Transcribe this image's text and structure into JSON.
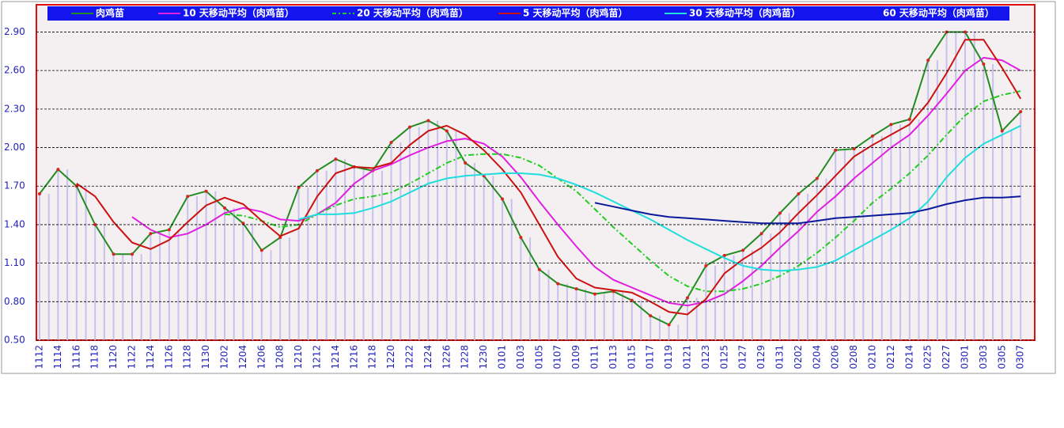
{
  "chart_data": {
    "type": "line",
    "categories": [
      "1112",
      "1114",
      "1116",
      "1118",
      "1120",
      "1122",
      "1124",
      "1126",
      "1128",
      "1130",
      "1202",
      "1204",
      "1206",
      "1208",
      "1210",
      "1212",
      "1214",
      "1216",
      "1218",
      "1220",
      "1222",
      "1224",
      "1226",
      "1228",
      "1230",
      "0101",
      "0103",
      "0105",
      "0107",
      "0109",
      "0111",
      "0113",
      "0115",
      "0117",
      "0119",
      "0121",
      "0123",
      "0125",
      "0127",
      "0129",
      "0131",
      "0202",
      "0204",
      "0206",
      "0208",
      "0210",
      "0212",
      "0214",
      "0225",
      "0227",
      "0301",
      "0303",
      "0305",
      "0307"
    ],
    "ylim": [
      0.5,
      3.1
    ],
    "yticks": [
      {
        "value": 0.5,
        "label": "0.50"
      },
      {
        "value": 0.8,
        "label": "0.80"
      },
      {
        "value": 1.1,
        "label": "1.10"
      },
      {
        "value": 1.4,
        "label": "1.40"
      },
      {
        "value": 1.7,
        "label": "1.70"
      },
      {
        "value": 2.0,
        "label": "2.00"
      },
      {
        "value": 2.3,
        "label": "2.30"
      },
      {
        "value": 2.6,
        "label": "2.60"
      },
      {
        "value": 2.9,
        "label": "2.90"
      }
    ],
    "grid": true,
    "series": [
      {
        "name": "肉鸡苗",
        "color": "#228b22",
        "marker": true,
        "bars": true,
        "values": [
          1.64,
          1.83,
          1.7,
          1.4,
          1.17,
          1.17,
          1.33,
          1.36,
          1.62,
          1.66,
          1.53,
          1.41,
          1.2,
          1.3,
          1.69,
          1.82,
          1.91,
          1.85,
          1.82,
          2.04,
          2.16,
          2.21,
          2.13,
          1.88,
          1.78,
          1.6,
          1.3,
          1.05,
          0.94,
          0.9,
          0.86,
          0.88,
          0.81,
          0.69,
          0.62,
          0.83,
          1.08,
          1.16,
          1.2,
          1.33,
          1.49,
          1.64,
          1.76,
          1.98,
          1.99,
          2.09,
          2.18,
          2.22,
          2.68,
          2.9,
          2.9,
          2.65,
          2.13,
          2.28
        ]
      },
      {
        "name": "10 天移动平均（肉鸡苗）",
        "color": "#e020e0",
        "values": [
          null,
          null,
          null,
          null,
          null,
          1.46,
          1.36,
          1.3,
          1.33,
          1.4,
          1.49,
          1.53,
          1.5,
          1.44,
          1.43,
          1.48,
          1.57,
          1.72,
          1.82,
          1.87,
          1.94,
          2.0,
          2.05,
          2.07,
          2.03,
          1.93,
          1.77,
          1.58,
          1.4,
          1.23,
          1.07,
          0.97,
          0.91,
          0.85,
          0.79,
          0.77,
          0.8,
          0.86,
          0.96,
          1.08,
          1.22,
          1.35,
          1.5,
          1.62,
          1.76,
          1.88,
          2.0,
          2.1,
          2.25,
          2.42,
          2.6,
          2.7,
          2.68,
          2.6
        ]
      },
      {
        "name": "20 天移动平均（肉鸡苗）",
        "color": "#22cc22",
        "dash": true,
        "values": [
          null,
          null,
          null,
          null,
          null,
          null,
          null,
          null,
          null,
          null,
          1.48,
          1.47,
          1.43,
          1.38,
          1.4,
          1.48,
          1.55,
          1.6,
          1.62,
          1.65,
          1.72,
          1.8,
          1.88,
          1.94,
          1.95,
          1.95,
          1.92,
          1.86,
          1.76,
          1.66,
          1.52,
          1.38,
          1.25,
          1.12,
          1.0,
          0.92,
          0.88,
          0.88,
          0.9,
          0.94,
          1.0,
          1.08,
          1.18,
          1.3,
          1.43,
          1.57,
          1.68,
          1.8,
          1.94,
          2.1,
          2.25,
          2.36,
          2.41,
          2.44
        ]
      },
      {
        "name": "5 天移动平均（肉鸡苗）",
        "color": "#cc1111",
        "values": [
          null,
          null,
          1.72,
          1.62,
          1.42,
          1.26,
          1.21,
          1.28,
          1.42,
          1.55,
          1.61,
          1.56,
          1.43,
          1.31,
          1.37,
          1.62,
          1.8,
          1.85,
          1.84,
          1.88,
          2.02,
          2.13,
          2.17,
          2.1,
          1.98,
          1.83,
          1.65,
          1.4,
          1.15,
          0.98,
          0.91,
          0.89,
          0.87,
          0.8,
          0.72,
          0.7,
          0.82,
          1.02,
          1.13,
          1.22,
          1.34,
          1.49,
          1.63,
          1.78,
          1.93,
          2.02,
          2.1,
          2.18,
          2.35,
          2.58,
          2.84,
          2.84,
          2.62,
          2.38
        ]
      },
      {
        "name": "30 天移动平均（肉鸡苗）",
        "color": "#22dddd",
        "values": [
          null,
          null,
          null,
          null,
          null,
          null,
          null,
          null,
          null,
          null,
          null,
          null,
          null,
          null,
          1.44,
          1.48,
          1.48,
          1.49,
          1.53,
          1.58,
          1.65,
          1.72,
          1.76,
          1.78,
          1.79,
          1.8,
          1.8,
          1.79,
          1.76,
          1.71,
          1.65,
          1.58,
          1.51,
          1.44,
          1.36,
          1.28,
          1.21,
          1.14,
          1.08,
          1.05,
          1.04,
          1.05,
          1.07,
          1.12,
          1.2,
          1.28,
          1.36,
          1.45,
          1.58,
          1.77,
          1.92,
          2.03,
          2.1,
          2.17
        ]
      },
      {
        "name": "60 天移动平均（肉鸡苗）",
        "color": "#0a1a9a",
        "values": [
          null,
          null,
          null,
          null,
          null,
          null,
          null,
          null,
          null,
          null,
          null,
          null,
          null,
          null,
          null,
          null,
          null,
          null,
          null,
          null,
          null,
          null,
          null,
          null,
          null,
          null,
          null,
          null,
          null,
          null,
          1.57,
          1.54,
          1.51,
          1.48,
          1.46,
          1.45,
          1.44,
          1.43,
          1.42,
          1.41,
          1.41,
          1.41,
          1.43,
          1.45,
          1.46,
          1.47,
          1.48,
          1.49,
          1.52,
          1.56,
          1.59,
          1.61,
          1.61,
          1.62
        ]
      }
    ]
  }
}
